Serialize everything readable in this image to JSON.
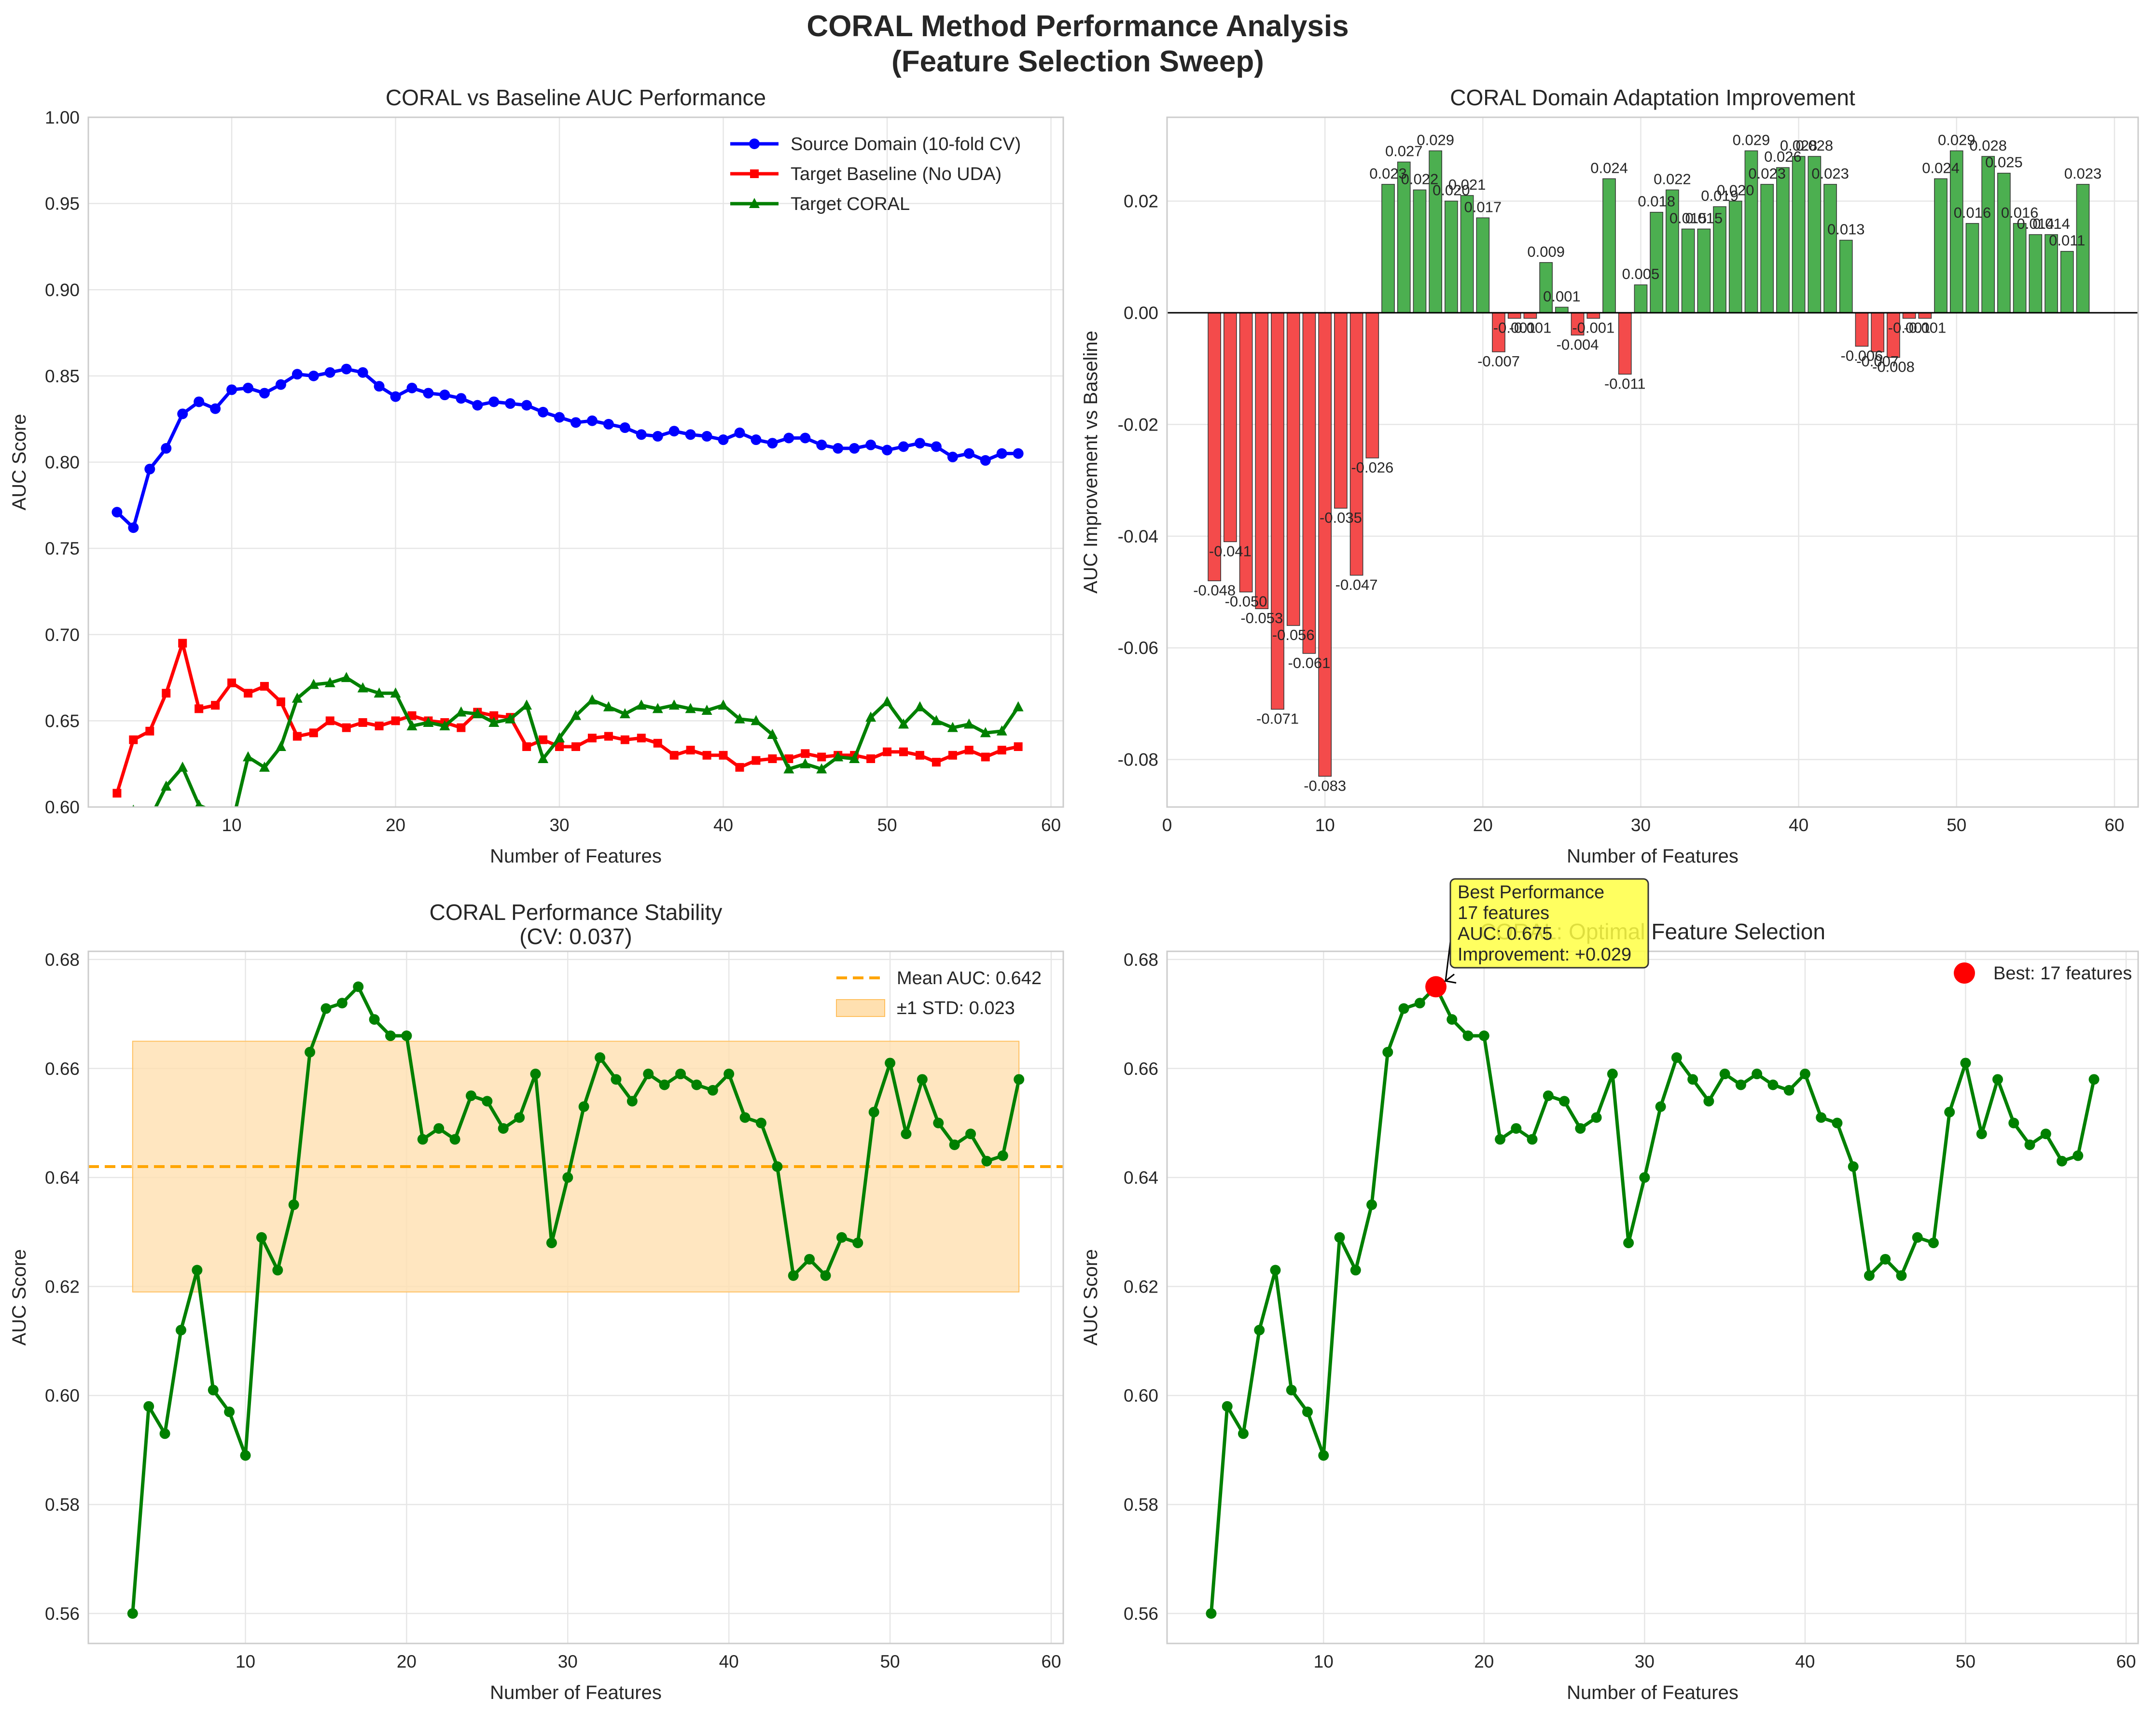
{
  "figure": {
    "title_line1": "CORAL Method Performance Analysis",
    "title_line2": "(Feature Selection Sweep)"
  },
  "colors": {
    "source": "#0000ff",
    "baseline": "#ff0000",
    "coral": "#008000",
    "positive_bar": "#4caf50",
    "negative_bar": "#f44b4b",
    "mean_line": "#ffa500",
    "std_band": "#ffe0b0",
    "annotation_box": "#ffff44",
    "best_marker": "#ff0000"
  },
  "chart_data": [
    {
      "id": "auc",
      "type": "line",
      "title": "CORAL vs Baseline AUC Performance",
      "xlabel": "Number of Features",
      "ylabel": "AUC Score",
      "xlim": [
        1.25,
        60.75
      ],
      "ylim": [
        0.6,
        1.0
      ],
      "xticks": [
        10,
        20,
        30,
        40,
        50,
        60
      ],
      "yticks": [
        0.6,
        0.65,
        0.7,
        0.75,
        0.8,
        0.85,
        0.9,
        0.95,
        1.0
      ],
      "grid": true,
      "legend": "top-right",
      "x": [
        3,
        4,
        5,
        6,
        7,
        8,
        9,
        10,
        11,
        12,
        13,
        14,
        15,
        16,
        17,
        18,
        19,
        20,
        21,
        22,
        23,
        24,
        25,
        26,
        27,
        28,
        29,
        30,
        31,
        32,
        33,
        34,
        35,
        36,
        37,
        38,
        39,
        40,
        41,
        42,
        43,
        44,
        45,
        46,
        47,
        48,
        49,
        50,
        51,
        52,
        53,
        54,
        55,
        56,
        57,
        58
      ],
      "series": [
        {
          "name": "Source Domain (10-fold CV)",
          "color": "#0000ff",
          "marker": "circle",
          "values": [
            0.771,
            0.762,
            0.796,
            0.808,
            0.828,
            0.835,
            0.831,
            0.842,
            0.843,
            0.84,
            0.845,
            0.851,
            0.85,
            0.852,
            0.854,
            0.852,
            0.844,
            0.838,
            0.843,
            0.84,
            0.839,
            0.837,
            0.833,
            0.835,
            0.834,
            0.833,
            0.829,
            0.826,
            0.823,
            0.824,
            0.822,
            0.82,
            0.816,
            0.815,
            0.818,
            0.816,
            0.815,
            0.813,
            0.817,
            0.813,
            0.811,
            0.814,
            0.814,
            0.81,
            0.808,
            0.808,
            0.81,
            0.807,
            0.809,
            0.811,
            0.809,
            0.803,
            0.805,
            0.801,
            0.805,
            0.805
          ]
        },
        {
          "name": "Target Baseline (No UDA)",
          "color": "#ff0000",
          "marker": "square",
          "values": [
            0.608,
            0.639,
            0.644,
            0.666,
            0.695,
            0.657,
            0.659,
            0.672,
            0.666,
            0.67,
            0.661,
            0.641,
            0.643,
            0.65,
            0.646,
            0.649,
            0.647,
            0.65,
            0.653,
            0.65,
            0.649,
            0.646,
            0.655,
            0.653,
            0.652,
            0.635,
            0.639,
            0.635,
            0.635,
            0.64,
            0.641,
            0.639,
            0.64,
            0.637,
            0.63,
            0.633,
            0.63,
            0.63,
            0.623,
            0.627,
            0.628,
            0.628,
            0.631,
            0.629,
            0.63,
            0.63,
            0.628,
            0.632,
            0.632,
            0.63,
            0.626,
            0.63,
            0.633,
            0.629,
            0.633,
            0.635
          ]
        },
        {
          "name": "Target CORAL",
          "color": "#008000",
          "marker": "triangle",
          "values": [
            0.56,
            0.598,
            0.593,
            0.612,
            0.623,
            0.601,
            0.597,
            0.589,
            0.629,
            0.623,
            0.635,
            0.663,
            0.671,
            0.672,
            0.675,
            0.669,
            0.666,
            0.666,
            0.647,
            0.649,
            0.647,
            0.655,
            0.654,
            0.649,
            0.651,
            0.659,
            0.628,
            0.64,
            0.653,
            0.662,
            0.658,
            0.654,
            0.659,
            0.657,
            0.659,
            0.657,
            0.656,
            0.659,
            0.651,
            0.65,
            0.642,
            0.622,
            0.625,
            0.622,
            0.629,
            0.628,
            0.652,
            0.661,
            0.648,
            0.658,
            0.65,
            0.646,
            0.648,
            0.643,
            0.644,
            0.658
          ]
        }
      ]
    },
    {
      "id": "improvement",
      "type": "bar",
      "title": "CORAL Domain Adaptation Improvement",
      "xlabel": "Number of Features",
      "ylabel": "AUC Improvement vs Baseline",
      "xlim": [
        0,
        61.5
      ],
      "ylim": [
        -0.0885,
        0.035
      ],
      "xticks": [
        0,
        10,
        20,
        30,
        40,
        50,
        60
      ],
      "yticks": [
        -0.08,
        -0.06,
        -0.04,
        -0.02,
        0.0,
        0.02
      ],
      "grid": true,
      "x": [
        3,
        4,
        5,
        6,
        7,
        8,
        9,
        10,
        11,
        12,
        13,
        14,
        15,
        16,
        17,
        18,
        19,
        20,
        21,
        22,
        23,
        24,
        25,
        26,
        27,
        28,
        29,
        30,
        31,
        32,
        33,
        34,
        35,
        36,
        37,
        38,
        39,
        40,
        41,
        42,
        43,
        44,
        45,
        46,
        47,
        48,
        49,
        50,
        51,
        52,
        53,
        54,
        55,
        56,
        57,
        58
      ],
      "values": [
        -0.048,
        -0.041,
        -0.05,
        -0.053,
        -0.071,
        -0.056,
        -0.061,
        -0.083,
        -0.035,
        -0.047,
        -0.026,
        0.023,
        0.027,
        0.022,
        0.029,
        0.02,
        0.021,
        0.017,
        -0.007,
        -0.001,
        -0.001,
        0.009,
        0.001,
        -0.004,
        -0.001,
        0.024,
        -0.011,
        0.005,
        0.018,
        0.022,
        0.015,
        0.015,
        0.019,
        0.02,
        0.029,
        0.023,
        0.026,
        0.028,
        0.028,
        0.023,
        0.013,
        -0.006,
        -0.007,
        -0.008,
        -0.001,
        -0.001,
        0.024,
        0.029,
        0.016,
        0.028,
        0.025,
        0.016,
        0.014,
        0.014,
        0.011,
        0.023
      ],
      "labels": [
        "-0.048",
        "-0.041",
        "-0.050",
        "-0.053",
        "-0.071",
        "-0.056",
        "-0.061",
        "-0.083",
        "-0.035",
        "-0.047",
        "-0.026",
        "0.023",
        "0.027",
        "0.022",
        "0.029",
        "0.020",
        "0.021",
        "0.017",
        "-0.007",
        "-0.001",
        "-0.001",
        "0.009",
        "0.001",
        "-0.004",
        "-0.001",
        "0.024",
        "-0.011",
        "0.005",
        "0.018",
        "0.022",
        "0.015",
        "0.015",
        "0.019",
        "0.020",
        "0.029",
        "0.023",
        "0.026",
        "0.028",
        "0.028",
        "0.023",
        "0.013",
        "-0.006",
        "-0.007",
        "-0.008",
        "-0.001",
        "-0.001",
        "0.024",
        "0.029",
        "0.016",
        "0.028",
        "0.025",
        "0.016",
        "0.014",
        "0.014",
        "0.011",
        "0.023"
      ]
    },
    {
      "id": "stability",
      "type": "line",
      "title": "CORAL Performance Stability",
      "subtitle": "(CV: 0.037)",
      "xlabel": "Number of Features",
      "ylabel": "AUC Score",
      "xlim": [
        0.25,
        60.75
      ],
      "ylim": [
        0.5545,
        0.6815
      ],
      "xticks": [
        10,
        20,
        30,
        40,
        50,
        60
      ],
      "yticks": [
        0.56,
        0.58,
        0.6,
        0.62,
        0.64,
        0.66,
        0.68
      ],
      "grid": true,
      "legend": "top-right",
      "mean": 0.642,
      "std": 0.023,
      "mean_label": "Mean AUC: 0.642",
      "std_label": "±1 STD: 0.023",
      "x": [
        3,
        4,
        5,
        6,
        7,
        8,
        9,
        10,
        11,
        12,
        13,
        14,
        15,
        16,
        17,
        18,
        19,
        20,
        21,
        22,
        23,
        24,
        25,
        26,
        27,
        28,
        29,
        30,
        31,
        32,
        33,
        34,
        35,
        36,
        37,
        38,
        39,
        40,
        41,
        42,
        43,
        44,
        45,
        46,
        47,
        48,
        49,
        50,
        51,
        52,
        53,
        54,
        55,
        56,
        57,
        58
      ],
      "values": [
        0.56,
        0.598,
        0.593,
        0.612,
        0.623,
        0.601,
        0.597,
        0.589,
        0.629,
        0.623,
        0.635,
        0.663,
        0.671,
        0.672,
        0.675,
        0.669,
        0.666,
        0.666,
        0.647,
        0.649,
        0.647,
        0.655,
        0.654,
        0.649,
        0.651,
        0.659,
        0.628,
        0.64,
        0.653,
        0.662,
        0.658,
        0.654,
        0.659,
        0.657,
        0.659,
        0.657,
        0.656,
        0.659,
        0.651,
        0.65,
        0.642,
        0.622,
        0.625,
        0.622,
        0.629,
        0.628,
        0.652,
        0.661,
        0.648,
        0.658,
        0.65,
        0.646,
        0.648,
        0.643,
        0.644,
        0.658
      ]
    },
    {
      "id": "optimal",
      "type": "line",
      "title": "CORAL: Optimal Feature Selection",
      "xlabel": "Number of Features",
      "ylabel": "AUC Score",
      "xlim": [
        0.25,
        60.75
      ],
      "ylim": [
        0.5545,
        0.6815
      ],
      "xticks": [
        10,
        20,
        30,
        40,
        50,
        60
      ],
      "yticks": [
        0.56,
        0.58,
        0.6,
        0.62,
        0.64,
        0.66,
        0.68
      ],
      "grid": true,
      "legend": "top-right",
      "best_x": 17,
      "best_y": 0.675,
      "best_label": "Best: 17 features",
      "annotation": [
        "Best Performance",
        "17 features",
        "AUC: 0.675",
        "Improvement: +0.029"
      ],
      "x": [
        3,
        4,
        5,
        6,
        7,
        8,
        9,
        10,
        11,
        12,
        13,
        14,
        15,
        16,
        17,
        18,
        19,
        20,
        21,
        22,
        23,
        24,
        25,
        26,
        27,
        28,
        29,
        30,
        31,
        32,
        33,
        34,
        35,
        36,
        37,
        38,
        39,
        40,
        41,
        42,
        43,
        44,
        45,
        46,
        47,
        48,
        49,
        50,
        51,
        52,
        53,
        54,
        55,
        56,
        57,
        58
      ],
      "values": [
        0.56,
        0.598,
        0.593,
        0.612,
        0.623,
        0.601,
        0.597,
        0.589,
        0.629,
        0.623,
        0.635,
        0.663,
        0.671,
        0.672,
        0.675,
        0.669,
        0.666,
        0.666,
        0.647,
        0.649,
        0.647,
        0.655,
        0.654,
        0.649,
        0.651,
        0.659,
        0.628,
        0.64,
        0.653,
        0.662,
        0.658,
        0.654,
        0.659,
        0.657,
        0.659,
        0.657,
        0.656,
        0.659,
        0.651,
        0.65,
        0.642,
        0.622,
        0.625,
        0.622,
        0.629,
        0.628,
        0.652,
        0.661,
        0.648,
        0.658,
        0.65,
        0.646,
        0.648,
        0.643,
        0.644,
        0.658
      ]
    }
  ]
}
